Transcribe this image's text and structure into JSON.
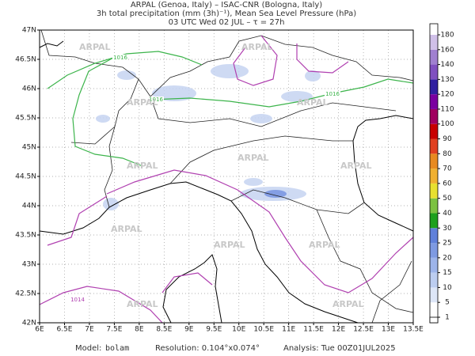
{
  "header": {
    "lines": [
      "ARPAL (Genoa, Italy)  –  ISAC-CNR (Bologna, Italy)",
      "3h total precipitation (mm (3h)⁻¹), Mean Sea Level Pressure (hPa)",
      "03 UTC Wed 02 JUL  –  τ = 27h"
    ]
  },
  "map": {
    "lon_ticks": [
      "6E",
      "6.5E",
      "7E",
      "7.5E",
      "8E",
      "8.5E",
      "9E",
      "9.5E",
      "10E",
      "10.5E",
      "11E",
      "11.5E",
      "12E",
      "12.5E",
      "13E",
      "13.5E"
    ],
    "lat_ticks": [
      "47N",
      "46.5N",
      "46N",
      "45.5N",
      "45N",
      "44.5N",
      "44N",
      "43.5N",
      "43N",
      "42.5N",
      "42N"
    ],
    "contour_labels": [
      "1016",
      "1016",
      "1016",
      "1014"
    ],
    "watermark": "ARPAL"
  },
  "colorbar": {
    "levels": [
      1,
      5,
      10,
      15,
      20,
      25,
      30,
      40,
      50,
      60,
      70,
      80,
      90,
      100,
      110,
      120,
      130,
      140,
      160,
      180
    ],
    "colors": [
      "#ffffff",
      "#dde6f7",
      "#bccdf0",
      "#9db4ea",
      "#7e9ae2",
      "#6080da",
      "#1ea01e",
      "#7cc242",
      "#e8e030",
      "#f0b030",
      "#e88a20",
      "#e04020",
      "#c80000",
      "#a00060",
      "#7a00a0",
      "#3020a0",
      "#8050c0",
      "#a080d0",
      "#d0c0e8",
      "#ffffff"
    ]
  },
  "footer": {
    "model_label": "Model:",
    "model": "bolam",
    "resolution": "Resolution: 0.104°x0.074°",
    "analysis": "Analysis: Tue 00Z01JUL2025"
  }
}
